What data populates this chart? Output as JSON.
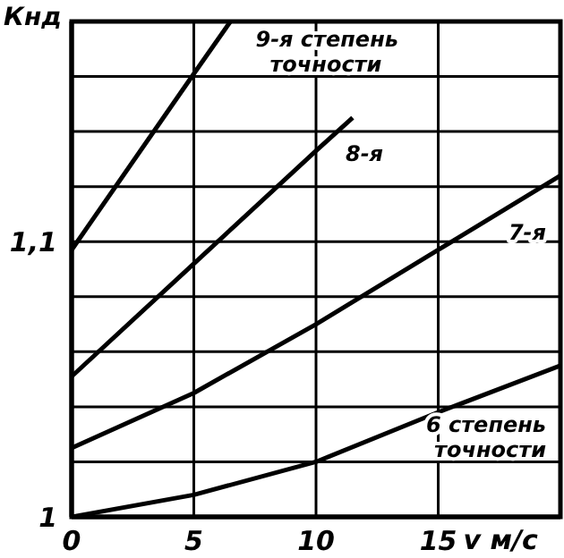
{
  "chart_data": {
    "type": "line",
    "ylabel": "Кнд",
    "xlabel": "v м/с",
    "xlim": [
      0,
      20
    ],
    "xticks": [
      0,
      5,
      10,
      15
    ],
    "ylim": [
      1,
      1.18
    ],
    "yticks": [
      {
        "value": 1,
        "label": "1"
      },
      {
        "value": 1.02,
        "label": null
      },
      {
        "value": 1.04,
        "label": null
      },
      {
        "value": 1.06,
        "label": null
      },
      {
        "value": 1.08,
        "label": null
      },
      {
        "value": 1.1,
        "label": "1,1"
      },
      {
        "value": 1.12,
        "label": null
      },
      {
        "value": 1.14,
        "label": null
      },
      {
        "value": 1.16,
        "label": null
      }
    ],
    "grid": true,
    "legend": false,
    "marker": "none",
    "line_style": "solid",
    "series": [
      {
        "name": "9-я степень точности",
        "color": "#000000",
        "x": [
          0,
          5,
          6.5
        ],
        "values": [
          1.097,
          1.161,
          1.18
        ]
      },
      {
        "name": "8-я",
        "color": "#000000",
        "x": [
          0,
          5,
          10,
          11.5
        ],
        "values": [
          1.051,
          1.092,
          1.133,
          1.145
        ]
      },
      {
        "name": "7-я",
        "color": "#000000",
        "x": [
          0,
          5,
          10,
          15,
          20
        ],
        "values": [
          1.025,
          1.045,
          1.07,
          1.097,
          1.124
        ]
      },
      {
        "name": "6 степень точности",
        "color": "#000000",
        "x": [
          0,
          5,
          10,
          15,
          20
        ],
        "values": [
          1.0,
          1.008,
          1.02,
          1.038,
          1.055
        ]
      }
    ]
  }
}
